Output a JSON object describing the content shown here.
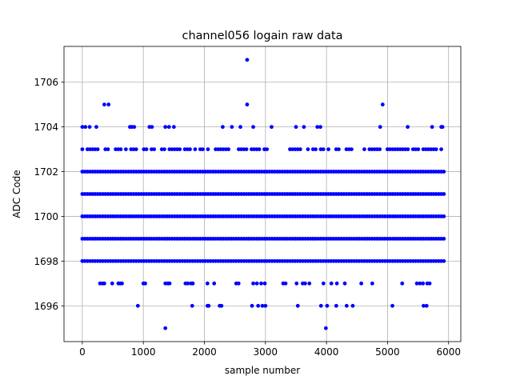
{
  "chart_data": {
    "type": "scatter",
    "title": "channel056 logain raw data",
    "xlabel": "sample number",
    "ylabel": "ADC Code",
    "xlim": [
      -300,
      6200
    ],
    "ylim": [
      1694.4,
      1707.6
    ],
    "xticks": [
      0,
      1000,
      2000,
      3000,
      4000,
      5000,
      6000
    ],
    "yticks": [
      1696,
      1698,
      1700,
      1702,
      1704,
      1706
    ],
    "grid": true,
    "marker_color": "#0000ff",
    "sample_count": 5950,
    "dense_levels": [
      1698,
      1699,
      1700,
      1701,
      1702
    ],
    "semi_dense_level": 1703,
    "sparse_points": {
      "1707": [
        2700
      ],
      "1705": [
        360,
        430,
        2700,
        4920
      ],
      "1704": [
        0,
        50,
        120,
        230,
        780,
        810,
        850,
        1100,
        1140,
        1360,
        1420,
        1500,
        2300,
        2450,
        2590,
        2800,
        3100,
        3500,
        3630,
        3850,
        3900,
        4880,
        5330,
        5730,
        5880,
        5900
      ],
      "1697": [
        290,
        330,
        360,
        490,
        590,
        620,
        650,
        1000,
        1030,
        1360,
        1400,
        1430,
        1690,
        1730,
        1780,
        1810,
        2050,
        2160,
        2520,
        2560,
        2800,
        2860,
        2930,
        2990,
        3290,
        3330,
        3510,
        3610,
        3650,
        3720,
        3950,
        4080,
        4170,
        4300,
        4570,
        4750,
        5240,
        5480,
        5530,
        5580,
        5650,
        5690
      ],
      "1696": [
        910,
        1800,
        2050,
        2070,
        2250,
        2280,
        2780,
        2880,
        2950,
        3000,
        3530,
        3910,
        4010,
        4160,
        4330,
        4430,
        5080,
        5590,
        5640
      ],
      "1695": [
        1360,
        3990
      ]
    }
  }
}
